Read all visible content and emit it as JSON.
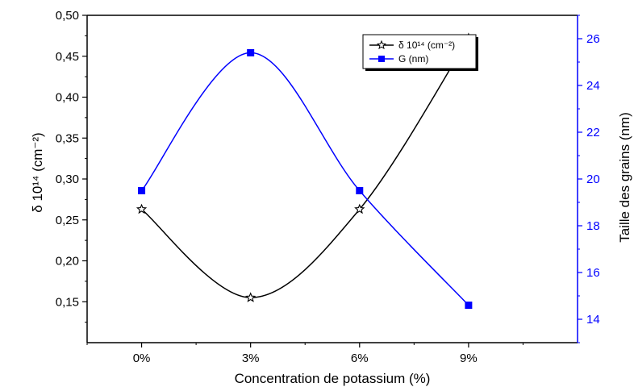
{
  "chart_data": {
    "type": "line",
    "categories": [
      "0%",
      "3%",
      "6%",
      "9%"
    ],
    "xlabel": "Concentration de potassium (%)",
    "ylabel_left": "δ 10¹⁴ (cm⁻²)",
    "ylabel_right": "Taille des grains (nm)",
    "ylim_left": [
      0.1,
      0.5
    ],
    "yticks_left": [
      "0,15",
      "0,20",
      "0,25",
      "0,30",
      "0,35",
      "0,40",
      "0,45",
      "0,50"
    ],
    "ylim_right": [
      13,
      27
    ],
    "yticks_right": [
      "14",
      "16",
      "18",
      "20",
      "22",
      "24",
      "26"
    ],
    "series": [
      {
        "name": "δ 10¹⁴ (cm⁻²)",
        "axis": "left",
        "marker": "star",
        "color": "#000000",
        "values": [
          0.263,
          0.155,
          0.263,
          0.472
        ]
      },
      {
        "name": "G (nm)",
        "axis": "right",
        "marker": "square",
        "color": "#0000ff",
        "values": [
          19.5,
          25.4,
          19.5,
          14.6
        ]
      }
    ],
    "legend_position": "top-right",
    "grid": false
  }
}
